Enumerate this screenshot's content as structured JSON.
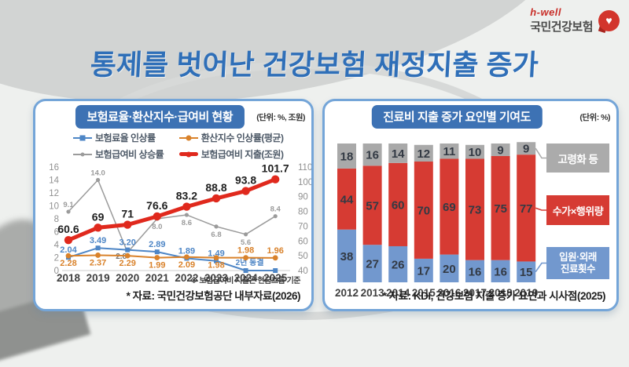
{
  "logo": {
    "brand": "h-well",
    "org": "국민건강보험",
    "heart": "♥"
  },
  "title": "통제를 벗어난 건강보험 재정지출 증가",
  "left_panel": {
    "header": "보험료율·환산지수·급여비 현황",
    "unit": "(단위: %, 조원)",
    "footnote": "※ 보험급여비 지출은 현금흐름 기준",
    "source": "* 자료: 국민건강보험공단 내부자료(2026)"
  },
  "right_panel": {
    "header": "진료비 지출 증가 요인별 기여도",
    "unit": "(단위: %)",
    "source": "* 자료: KDI, 건강보험 지출 증가 요인과 시사점(2025)"
  },
  "chart_data": [
    {
      "type": "line",
      "title": "보험료율·환산지수·급여비 현황",
      "categories": [
        "2018",
        "2019",
        "2020",
        "2021",
        "2022",
        "2023",
        "2024",
        "2025"
      ],
      "left_axis": {
        "min": 0,
        "max": 16,
        "ticks": [
          0,
          2,
          4,
          6,
          8,
          10,
          12,
          14,
          16
        ]
      },
      "right_axis": {
        "min": 40,
        "max": 110,
        "ticks": [
          40,
          50,
          60,
          70,
          80,
          90,
          100,
          110
        ]
      },
      "grid": false,
      "legend_position": "top",
      "series": [
        {
          "name": "보험급여비 상승률",
          "axis": "left",
          "color": "#9b9b9b",
          "marker": "dot",
          "width": 1.5,
          "values": [
            9.1,
            14.0,
            2.8,
            8.0,
            8.6,
            6.8,
            5.6,
            8.4
          ],
          "labels": [
            "9.1",
            "14.0",
            "2.8",
            "8.0",
            "8.6",
            "6.8",
            "5.6",
            "8.4"
          ],
          "label_pos": [
            "above",
            "above",
            "box",
            "below",
            "below",
            "below",
            "below",
            "above"
          ]
        },
        {
          "name": "보험료율 인상률",
          "axis": "left",
          "color": "#4e86c6",
          "marker": "square",
          "width": 2,
          "values": [
            2.04,
            3.49,
            3.2,
            2.89,
            1.89,
            1.49,
            0,
            0
          ],
          "labels": [
            "2.04",
            "3.49",
            "3.20",
            "2.89",
            "1.89",
            "1.49",
            "",
            ""
          ],
          "label_pos": [
            "above",
            "above",
            "above",
            "above",
            "above",
            "above",
            "skip",
            "skip"
          ],
          "annotation": "2년 동결"
        },
        {
          "name": "환산지수 인상률(평균)",
          "axis": "left",
          "color": "#d9822b",
          "marker": "circle",
          "width": 2,
          "values": [
            2.28,
            2.37,
            2.29,
            1.99,
            2.09,
            1.98,
            1.98,
            1.96
          ],
          "labels": [
            "2.28",
            "2.37",
            "2.29",
            "1.99",
            "2.09",
            "1.98",
            "1.98",
            "1.96"
          ],
          "label_pos": [
            "below",
            "below",
            "below",
            "below",
            "below",
            "below",
            "above",
            "above"
          ]
        },
        {
          "name": "보험급여비 지출(조원)",
          "axis": "right",
          "color": "#e0291d",
          "marker": "bigdot",
          "width": 5,
          "values": [
            60.6,
            69,
            71,
            76.6,
            83.2,
            88.8,
            93.8,
            101.7
          ],
          "labels": [
            "60.6",
            "69",
            "71",
            "76.6",
            "83.2",
            "88.8",
            "93.8",
            "101.7"
          ],
          "label_pos": [
            "above",
            "above",
            "above",
            "above",
            "above",
            "above",
            "above",
            "above"
          ]
        }
      ]
    },
    {
      "type": "bar",
      "stacked": true,
      "title": "진료비 지출 증가 요인별 기여도",
      "categories": [
        "2012",
        "2013",
        "2014",
        "2015",
        "2016",
        "2017",
        "2018",
        "2019"
      ],
      "ylim": [
        0,
        100
      ],
      "series": [
        {
          "name": "입원·외래 진료횟수",
          "color": "#7298ce",
          "values": [
            38,
            27,
            26,
            17,
            20,
            16,
            16,
            15
          ]
        },
        {
          "name": "수가×행위량",
          "color": "#d63b33",
          "values": [
            44,
            57,
            60,
            70,
            69,
            73,
            75,
            77
          ]
        },
        {
          "name": "고령화 등",
          "color": "#a9a9a9",
          "values": [
            18,
            16,
            14,
            12,
            11,
            10,
            9,
            9
          ]
        }
      ],
      "callouts": [
        {
          "text": "고령화 등",
          "color": "#ababab"
        },
        {
          "text": "수가×행위량",
          "color": "#d63b33"
        },
        {
          "text": "입원·외래\n진료횟수",
          "color": "#7298ce"
        }
      ]
    }
  ]
}
